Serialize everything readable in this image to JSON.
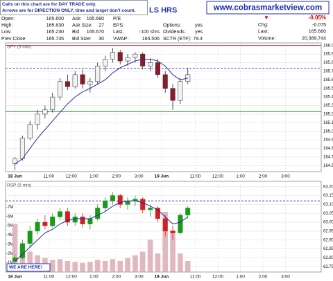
{
  "notes": [
    "Calls on this chart are for DAY TRADE only.",
    "Arrows are for DIRECTION ONLY, time and target don't count."
  ],
  "title": "LS HRS",
  "banner": "www.cobrasmarketview.com",
  "table": {
    "rows": [
      [
        [
          "Open:",
          "165.600"
        ],
        [
          "Ask:",
          "165.680"
        ],
        [
          "P/E"
        ]
      ],
      [
        [
          "High:",
          "165.830"
        ],
        [
          "Ask Size:",
          "27"
        ],
        [
          "EPS:"
        ],
        [
          "Options:",
          "yes"
        ]
      ],
      [
        [
          "Low:",
          "165.230"
        ],
        [
          "Bid",
          "165.670"
        ],
        [
          "Last:",
          "↑100 shrs"
        ],
        [
          "Dividends:",
          "yes"
        ]
      ],
      [
        [
          "Prev Close:",
          "165.735"
        ],
        [
          "Bid Size:",
          "30"
        ],
        [
          "VWAP:",
          "165.506"
        ],
        [
          "SCTR (ETF):",
          "79.4"
        ]
      ]
    ]
  },
  "quote": {
    "change_arrow": "▼",
    "change_pct": "-0.05%",
    "rows": [
      [
        "Chg:",
        "-0.075"
      ],
      [
        "Last:",
        "165.660"
      ],
      [
        "Volume:",
        "20,389,744"
      ]
    ]
  },
  "marker": "WE ARE HERE!",
  "chart_data": [
    {
      "type": "candlestick",
      "title": "SPY (5 min)",
      "grid": true,
      "up_color": "#f2f2f2",
      "down_color": "#8b1a2b",
      "x": [
        0,
        4,
        8,
        12,
        16,
        20,
        24,
        28,
        32,
        36,
        40,
        44,
        48,
        52,
        56,
        60,
        64,
        68,
        72,
        76,
        80,
        84,
        88,
        92
      ],
      "open": [
        164.62,
        164.68,
        164.92,
        165.08,
        165.2,
        165.25,
        165.4,
        165.58,
        165.52,
        165.66,
        165.55,
        165.58,
        165.76,
        165.84,
        165.92,
        165.82,
        165.86,
        165.9,
        165.76,
        165.8,
        165.66,
        165.5,
        165.36,
        165.58
      ],
      "high": [
        164.7,
        164.95,
        165.12,
        165.25,
        165.3,
        165.45,
        165.62,
        165.66,
        165.7,
        165.72,
        165.62,
        165.8,
        165.88,
        165.97,
        165.95,
        165.9,
        165.92,
        165.92,
        165.85,
        165.84,
        165.7,
        165.55,
        165.62,
        165.74
      ],
      "low": [
        164.55,
        164.66,
        164.9,
        165.02,
        165.15,
        165.22,
        165.36,
        165.48,
        165.5,
        165.5,
        165.45,
        165.55,
        165.7,
        165.8,
        165.78,
        165.76,
        165.8,
        165.72,
        165.7,
        165.62,
        165.45,
        165.25,
        165.32,
        165.55
      ],
      "close": [
        164.68,
        164.92,
        165.08,
        165.2,
        165.25,
        165.4,
        165.58,
        165.52,
        165.66,
        165.55,
        165.58,
        165.76,
        165.84,
        165.92,
        165.82,
        165.86,
        165.9,
        165.76,
        165.8,
        165.66,
        165.5,
        165.36,
        165.58,
        165.66
      ],
      "ma": {
        "color": "#2a2a9a",
        "values": [
          164.62,
          164.68,
          164.8,
          164.92,
          165.02,
          165.12,
          165.22,
          165.32,
          165.4,
          165.46,
          165.5,
          165.55,
          165.6,
          165.68,
          165.74,
          165.78,
          165.82,
          165.84,
          165.84,
          165.82,
          165.76,
          165.66,
          165.6,
          165.62
        ]
      },
      "ref_lines": [
        {
          "value": 166.0,
          "color": "#cc0000"
        },
        {
          "value": 165.23,
          "color": "#007a00"
        },
        {
          "value": 165.735,
          "color": "#3333cc",
          "dashed": true
        }
      ],
      "xlim": [
        -5,
        163
      ],
      "xticks": [
        {
          "value": 0,
          "label": "18 Jun"
        },
        {
          "value": 18,
          "label": "11:00"
        },
        {
          "value": 30,
          "label": "12:00"
        },
        {
          "value": 42,
          "label": "1:00"
        },
        {
          "value": 54,
          "label": "2:00"
        },
        {
          "value": 66,
          "label": "3:00"
        },
        {
          "value": 78,
          "label": "19 Jun"
        },
        {
          "value": 96,
          "label": "11:00"
        },
        {
          "value": 108,
          "label": "12:00"
        },
        {
          "value": 120,
          "label": "1:00"
        },
        {
          "value": 132,
          "label": "2:00"
        },
        {
          "value": 144,
          "label": "3:00"
        }
      ],
      "ylim": [
        164.53,
        166.03
      ],
      "yticks": [
        {
          "value": 164.6,
          "label": "164.60"
        },
        {
          "value": 164.7,
          "label": "164.70"
        },
        {
          "value": 164.8,
          "label": "164.80"
        },
        {
          "value": 164.9,
          "label": "164.90"
        },
        {
          "value": 165.0,
          "label": "165.00"
        },
        {
          "value": 165.1,
          "label": "165.10"
        },
        {
          "value": 165.2,
          "label": "165.20"
        },
        {
          "value": 165.3,
          "label": "165.30"
        },
        {
          "value": 165.4,
          "label": "165.40"
        },
        {
          "value": 165.5,
          "label": "165.50"
        },
        {
          "value": 165.6,
          "label": "165.60"
        },
        {
          "value": 165.7,
          "label": "165.70"
        },
        {
          "value": 165.8,
          "label": "165.80"
        },
        {
          "value": 165.9,
          "label": "165.90"
        },
        {
          "value": 166.0,
          "label": "166.00"
        }
      ]
    },
    {
      "type": "candlestick",
      "title": "RSP (5 min)",
      "grid": true,
      "axis": "y2",
      "up_color": "#1a9a1a",
      "down_color": "#cc2222",
      "x": [
        0,
        4,
        8,
        12,
        16,
        20,
        24,
        28,
        32,
        36,
        40,
        44,
        48,
        52,
        56,
        60,
        64,
        68,
        72,
        76,
        80,
        84,
        88,
        92
      ],
      "open": [
        62.78,
        62.8,
        62.88,
        62.95,
        63.0,
        62.98,
        63.03,
        63.06,
        63.0,
        63.03,
        62.99,
        63.02,
        63.08,
        63.12,
        63.15,
        63.1,
        63.12,
        63.13,
        63.07,
        63.08,
        63.02,
        62.95,
        62.94,
        63.04
      ],
      "high": [
        62.82,
        62.9,
        62.98,
        63.02,
        63.04,
        63.05,
        63.08,
        63.08,
        63.05,
        63.05,
        63.04,
        63.1,
        63.14,
        63.17,
        63.16,
        63.14,
        63.15,
        63.14,
        63.1,
        63.09,
        63.04,
        62.98,
        63.05,
        63.09
      ],
      "low": [
        62.76,
        62.79,
        62.86,
        62.93,
        62.96,
        62.97,
        63.01,
        62.98,
        62.98,
        62.97,
        62.96,
        63.01,
        63.06,
        63.1,
        63.08,
        63.07,
        63.09,
        63.05,
        63.03,
        63.0,
        62.92,
        62.9,
        62.93,
        63.02
      ],
      "close": [
        62.8,
        62.88,
        62.95,
        63.0,
        62.98,
        63.03,
        63.06,
        63.0,
        63.03,
        62.99,
        63.02,
        63.08,
        63.12,
        63.15,
        63.1,
        63.12,
        63.13,
        63.07,
        63.08,
        63.02,
        62.95,
        62.94,
        63.04,
        63.08
      ],
      "ma": {
        "color": "#2a2a9a",
        "values": [
          62.78,
          62.82,
          62.86,
          62.9,
          62.94,
          62.96,
          62.99,
          63.01,
          63.02,
          63.02,
          63.02,
          63.04,
          63.06,
          63.09,
          63.11,
          63.12,
          63.12,
          63.11,
          63.09,
          63.07,
          63.03,
          62.99,
          63.0,
          63.03
        ]
      },
      "volume": {
        "color": "#dba6b0",
        "values": [
          5200000,
          2800000,
          2200000,
          1800000,
          1500000,
          1300000,
          1400000,
          1200000,
          1100000,
          1000000,
          1100000,
          1300000,
          1200000,
          1400000,
          1200000,
          1500000,
          1800000,
          2200000,
          3500000,
          2000000,
          6500000,
          4500000,
          2000000,
          1200000
        ]
      },
      "ref_lines": [
        {
          "value": 63.12,
          "color": "#3333cc",
          "dashed": true,
          "axis": "y2"
        }
      ],
      "xlim": [
        -5,
        163
      ],
      "xticks": [
        {
          "value": 0,
          "label": "18 Jun"
        },
        {
          "value": 18,
          "label": "11:00"
        },
        {
          "value": 30,
          "label": "12:00"
        },
        {
          "value": 42,
          "label": "1:00"
        },
        {
          "value": 54,
          "label": "2:00"
        },
        {
          "value": 66,
          "label": "3:00"
        },
        {
          "value": 78,
          "label": "19 Jun"
        },
        {
          "value": 96,
          "label": "11:00"
        },
        {
          "value": 108,
          "label": "12:00"
        },
        {
          "value": 120,
          "label": "1:00"
        },
        {
          "value": 132,
          "label": "2:00"
        },
        {
          "value": 144,
          "label": "3:00"
        }
      ],
      "ylim": [
        0,
        9800000
      ],
      "yticks": [
        {
          "value": 1000000,
          "label": "1M"
        },
        {
          "value": 2000000,
          "label": "2M"
        },
        {
          "value": 3000000,
          "label": "3M"
        },
        {
          "value": 4000000,
          "label": "4M"
        },
        {
          "value": 5000000,
          "label": "5M"
        },
        {
          "value": 6000000,
          "label": "6M"
        },
        {
          "value": 7000000,
          "label": "7M"
        }
      ],
      "y2lim": [
        62.72,
        63.23
      ],
      "y2ticks": [
        62.75,
        {
          "value": 62.8,
          "label": "62.80"
        },
        62.85,
        {
          "value": 62.9,
          "label": "62.90"
        },
        62.95,
        {
          "value": 63.0,
          "label": "63.00"
        },
        63.05,
        {
          "value": 63.1,
          "label": "63.10"
        },
        63.15,
        {
          "value": 63.2,
          "label": "63.20"
        }
      ]
    }
  ]
}
